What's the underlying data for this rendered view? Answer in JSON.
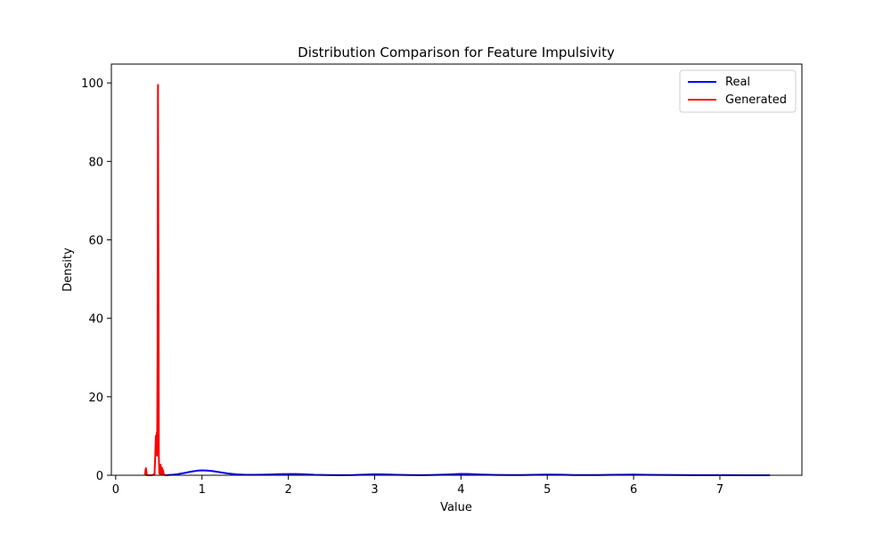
{
  "chart_data": {
    "type": "line",
    "title": "Distribution Comparison for Feature Impulsivity",
    "xlabel": "Value",
    "ylabel": "Density",
    "xlim": [
      -0.05,
      7.95
    ],
    "ylim": [
      0,
      104.8
    ],
    "xticks": [
      0,
      1,
      2,
      3,
      4,
      5,
      6,
      7
    ],
    "yticks": [
      0,
      20,
      40,
      60,
      80,
      100
    ],
    "grid": false,
    "legend_position": "top-right",
    "series": [
      {
        "name": "Real",
        "color": "#0000ff",
        "x": [
          0.58,
          0.65,
          0.72,
          0.8,
          0.87,
          0.94,
          1.0,
          1.06,
          1.13,
          1.2,
          1.3,
          1.4,
          1.5,
          1.6,
          1.7,
          1.8,
          1.9,
          2.0,
          2.1,
          2.2,
          2.3,
          2.45,
          2.6,
          2.75,
          2.9,
          3.0,
          3.1,
          3.25,
          3.4,
          3.55,
          3.7,
          3.85,
          4.0,
          4.1,
          4.25,
          4.4,
          4.55,
          4.7,
          4.85,
          5.0,
          5.15,
          5.3,
          5.45,
          5.6,
          5.75,
          5.9,
          6.0,
          6.15,
          6.3,
          6.5,
          6.7,
          6.9,
          7.1,
          7.3,
          7.45,
          7.58
        ],
        "y": [
          0.02,
          0.1,
          0.3,
          0.6,
          0.9,
          1.15,
          1.25,
          1.2,
          1.05,
          0.8,
          0.45,
          0.22,
          0.12,
          0.1,
          0.13,
          0.2,
          0.28,
          0.32,
          0.3,
          0.22,
          0.12,
          0.06,
          0.04,
          0.06,
          0.16,
          0.26,
          0.24,
          0.12,
          0.05,
          0.03,
          0.08,
          0.2,
          0.33,
          0.3,
          0.18,
          0.08,
          0.05,
          0.07,
          0.12,
          0.16,
          0.13,
          0.07,
          0.05,
          0.07,
          0.12,
          0.15,
          0.16,
          0.12,
          0.08,
          0.05,
          0.04,
          0.03,
          0.02,
          0.01,
          0.01,
          0.0
        ]
      },
      {
        "name": "Generated",
        "color": "#ff0000",
        "x": [
          0.34,
          0.345,
          0.35,
          0.355,
          0.36,
          0.365,
          0.37,
          0.39,
          0.42,
          0.45,
          0.46,
          0.465,
          0.47,
          0.475,
          0.48,
          0.485,
          0.49,
          0.495,
          0.5,
          0.505,
          0.51,
          0.515,
          0.52,
          0.525,
          0.53,
          0.535,
          0.54,
          0.545,
          0.55,
          0.555,
          0.56,
          0.57,
          0.6
        ],
        "y": [
          0.0,
          1.2,
          1.8,
          1.0,
          0.1,
          0.0,
          0.0,
          0.0,
          0.0,
          0.3,
          6.0,
          10.0,
          8.5,
          10.8,
          5.0,
          30.0,
          99.5,
          55.0,
          5.0,
          0.5,
          2.0,
          0.2,
          2.7,
          0.5,
          2.0,
          0.3,
          1.8,
          0.4,
          1.2,
          0.2,
          0.3,
          0.0,
          0.0
        ]
      }
    ]
  }
}
